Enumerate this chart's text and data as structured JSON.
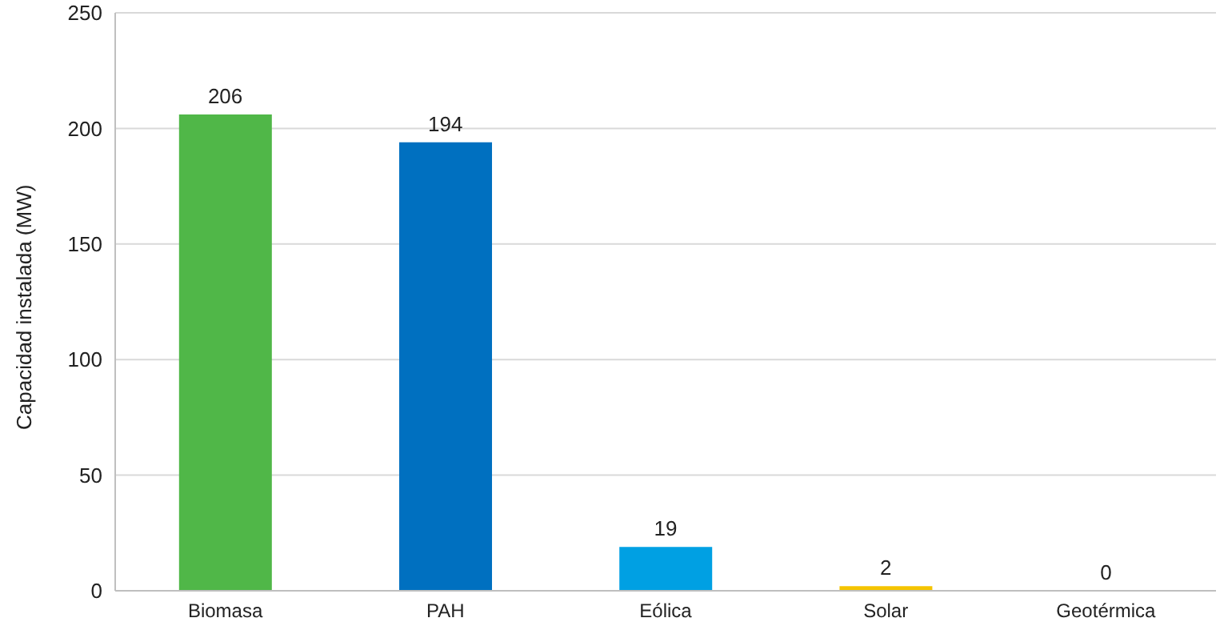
{
  "chart_data": {
    "type": "bar",
    "ylabel": "Capacidad instalada (MW)",
    "categories": [
      "Biomasa",
      "PAH",
      "Eólica",
      "Solar",
      "Geotérmica"
    ],
    "values": [
      206,
      194,
      19,
      2,
      0
    ],
    "colors": [
      "#50b748",
      "#0070c0",
      "#00a0e3",
      "#f5c400",
      "#ed7d31"
    ],
    "ylim": [
      0,
      250
    ],
    "yticks": [
      0,
      50,
      100,
      150,
      200,
      250
    ],
    "grid": "y",
    "legend": false,
    "data_labels": true
  }
}
